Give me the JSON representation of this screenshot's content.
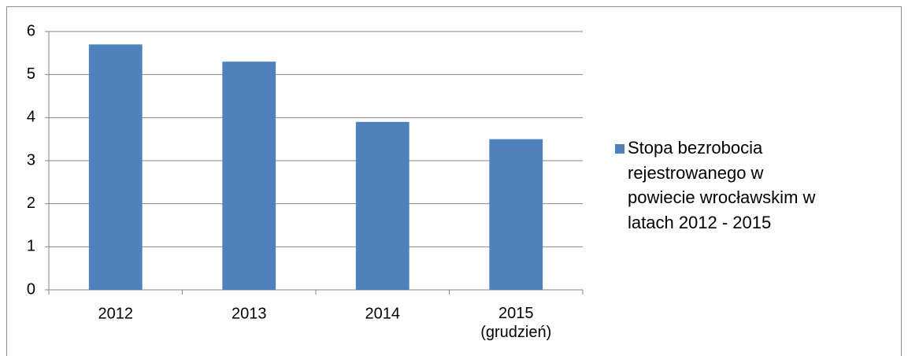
{
  "chart_data": {
    "type": "bar",
    "categories": [
      "2012",
      "2013",
      "2014",
      "2015\n(grudzień)"
    ],
    "series": [
      {
        "name": "Stopa bezrobocia rejestrowanego w powiecie wrocławskim w latach 2012 - 2015",
        "color": "#4f81bd",
        "values": [
          5.7,
          5.3,
          3.9,
          3.5
        ]
      }
    ],
    "ylim": [
      0,
      6
    ],
    "yticks": [
      0,
      1,
      2,
      3,
      4,
      5,
      6
    ],
    "grid": true,
    "legend": "right"
  }
}
